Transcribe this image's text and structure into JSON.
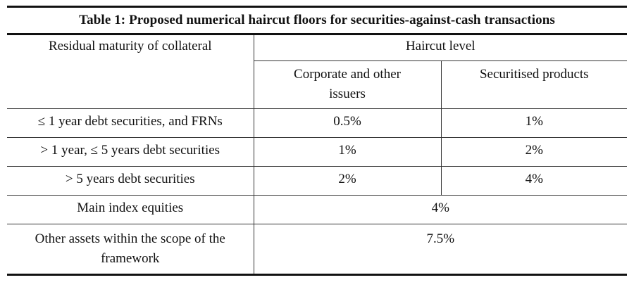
{
  "table": {
    "title": "Table 1: Proposed numerical haircut floors for securities-against-cash transactions",
    "header": {
      "residual_maturity": "Residual maturity of collateral",
      "haircut_level": "Haircut level",
      "corporate_line1": "Corporate and other",
      "corporate_line2": "issuers",
      "securitised": "Securitised products"
    },
    "rows": [
      {
        "label": "≤ 1 year debt securities, and FRNs",
        "corporate": "0.5%",
        "securitised": "1%"
      },
      {
        "label": "> 1 year, ≤ 5 years debt securities",
        "corporate": "1%",
        "securitised": "2%"
      },
      {
        "label": "> 5 years debt securities",
        "corporate": "2%",
        "securitised": "4%"
      }
    ],
    "equities": {
      "label": "Main index equities",
      "value": "4%"
    },
    "other": {
      "label_line1": "Other assets within the scope of the",
      "label_line2": "framework",
      "value": "7.5%"
    }
  }
}
